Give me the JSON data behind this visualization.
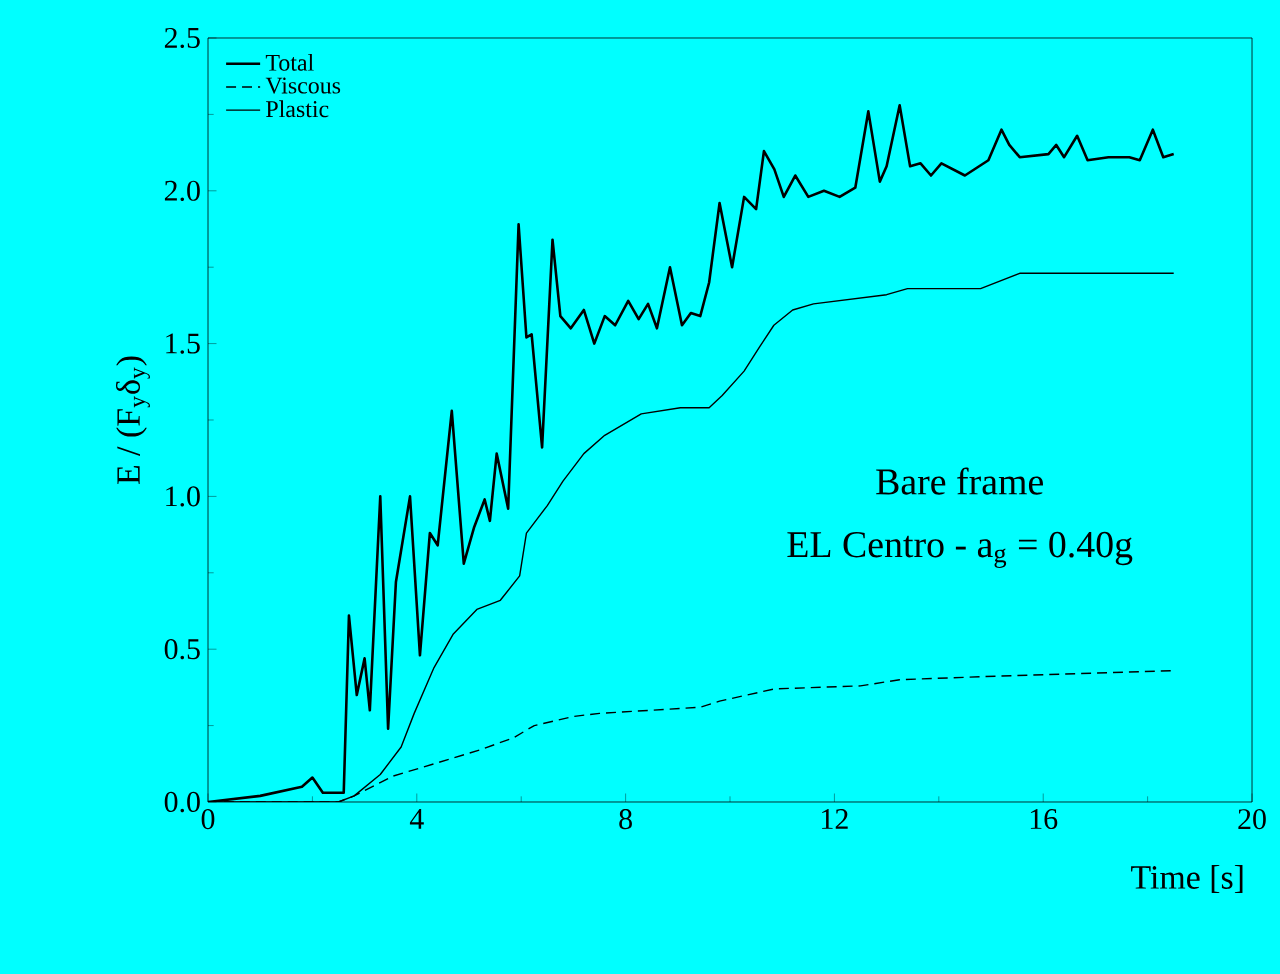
{
  "chart_data": {
    "type": "line",
    "xlabel": "Time [s]",
    "ylabel": "E / (F$_{y}$δ$_{y}$)",
    "annotations": [
      "Bare frame",
      "EL Centro - a$_{g}$ = 0.40g"
    ],
    "xlim": [
      0,
      20
    ],
    "ylim": [
      0,
      2.5
    ],
    "xticks": [
      0,
      4,
      8,
      12,
      16,
      20
    ],
    "yticks": [
      {
        "value": 0,
        "label": "0.0"
      },
      {
        "value": 0.5,
        "label": "0.5"
      },
      {
        "value": 1,
        "label": "1.0"
      },
      {
        "value": 1.5,
        "label": "1.5"
      },
      {
        "value": 2,
        "label": "2.0"
      },
      {
        "value": 2.5,
        "label": "2.5"
      }
    ],
    "grid": false,
    "legend": "top left",
    "marker": "none",
    "series": [
      {
        "name": "Total",
        "color": "#000000",
        "line_style": "solid",
        "x": [
          0,
          1,
          1.8,
          2.0,
          2.2,
          2.6,
          2.7,
          2.85,
          3.0,
          3.1,
          3.3,
          3.45,
          3.6,
          3.87,
          4.06,
          4.25,
          4.4,
          4.67,
          4.9,
          5.1,
          5.3,
          5.4,
          5.53,
          5.75,
          5.95,
          6.1,
          6.2,
          6.4,
          6.6,
          6.75,
          6.95,
          7.2,
          7.4,
          7.6,
          7.8,
          8.05,
          8.25,
          8.43,
          8.6,
          8.85,
          9.08,
          9.25,
          9.43,
          9.6,
          9.8,
          10.04,
          10.27,
          10.5,
          10.65,
          10.85,
          11.03,
          11.25,
          11.5,
          11.8,
          12.1,
          12.4,
          12.65,
          12.87,
          13.0,
          13.25,
          13.45,
          13.65,
          13.85,
          14.05,
          14.5,
          14.95,
          15.2,
          15.35,
          15.55,
          16.1,
          16.25,
          16.4,
          16.65,
          16.85,
          17.25,
          17.65,
          17.85,
          18.1,
          18.3,
          18.5
        ],
        "values": [
          0,
          0.02,
          0.05,
          0.08,
          0.03,
          0.03,
          0.61,
          0.35,
          0.47,
          0.3,
          1.0,
          0.24,
          0.72,
          1.0,
          0.48,
          0.88,
          0.84,
          1.28,
          0.78,
          0.9,
          0.99,
          0.92,
          1.14,
          0.96,
          1.89,
          1.52,
          1.53,
          1.16,
          1.84,
          1.59,
          1.55,
          1.61,
          1.5,
          1.59,
          1.56,
          1.64,
          1.58,
          1.63,
          1.55,
          1.75,
          1.56,
          1.6,
          1.59,
          1.7,
          1.96,
          1.75,
          1.98,
          1.94,
          2.13,
          2.07,
          1.98,
          2.05,
          1.98,
          2.0,
          1.98,
          2.01,
          2.26,
          2.03,
          2.08,
          2.28,
          2.08,
          2.09,
          2.05,
          2.09,
          2.05,
          2.1,
          2.2,
          2.15,
          2.11,
          2.12,
          2.15,
          2.11,
          2.18,
          2.1,
          2.11,
          2.11,
          2.1,
          2.2,
          2.11,
          2.12
        ]
      },
      {
        "name": "Viscous",
        "color": "#000000",
        "line_style": "dashed",
        "x": [
          0,
          2.5,
          2.8,
          3.55,
          4.33,
          5.2,
          5.85,
          6.25,
          7.0,
          7.5,
          9.43,
          9.8,
          10.85,
          12.5,
          13.25,
          14.8,
          18.5
        ],
        "values": [
          0,
          0,
          0.02,
          0.085,
          0.125,
          0.17,
          0.21,
          0.25,
          0.28,
          0.29,
          0.31,
          0.33,
          0.37,
          0.38,
          0.4,
          0.41,
          0.43
        ]
      },
      {
        "name": "Plastic",
        "color": "#000000",
        "line_style": "solid",
        "x": [
          0,
          2.5,
          2.8,
          3.3,
          3.7,
          3.95,
          4.33,
          4.7,
          5.15,
          5.6,
          5.97,
          6.1,
          6.5,
          6.8,
          7.2,
          7.6,
          8.3,
          9.05,
          9.6,
          9.85,
          10.27,
          10.57,
          10.84,
          11.2,
          11.6,
          13.0,
          13.4,
          14.8,
          15.55,
          18.5
        ],
        "values": [
          0,
          0,
          0.02,
          0.09,
          0.18,
          0.29,
          0.44,
          0.55,
          0.63,
          0.66,
          0.74,
          0.88,
          0.97,
          1.05,
          1.14,
          1.2,
          1.27,
          1.29,
          1.29,
          1.33,
          1.41,
          1.49,
          1.56,
          1.61,
          1.63,
          1.66,
          1.68,
          1.68,
          1.73,
          1.73
        ]
      }
    ]
  }
}
